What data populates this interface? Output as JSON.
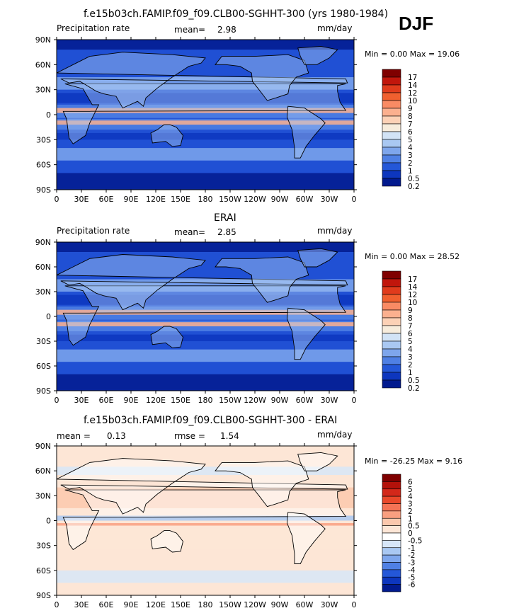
{
  "season": "DJF",
  "x_ticks": [
    "0",
    "30E",
    "60E",
    "90E",
    "120E",
    "150E",
    "180",
    "150W",
    "120W",
    "90W",
    "60W",
    "30W",
    "0"
  ],
  "y_ticks": [
    "90N",
    "60N",
    "30N",
    "0",
    "30S",
    "60S",
    "90S"
  ],
  "panels": [
    {
      "title": "f.e15b03ch.FAMIP.f09_f09.CLB00-SGHHT-300 (yrs 1980-1984)",
      "left_label": "Precipitation rate",
      "stat1_label": "mean=",
      "stat1_value": "2.98",
      "stat2_label": "",
      "stat2_value": "",
      "units": "mm/day",
      "minmax": "Min =   0.00 Max =  19.06",
      "colorbar": [
        "17",
        "14",
        "12",
        "10",
        "9",
        "8",
        "7",
        "6",
        "5",
        "4",
        "3",
        "2",
        "1",
        "0.5",
        "0.2"
      ],
      "colors": [
        "#7f0000",
        "#c1160c",
        "#e03b1c",
        "#f0602f",
        "#f98b64",
        "#fbb08f",
        "#fcd1b6",
        "#f7ecdc",
        "#d2e3f6",
        "#a9c8f2",
        "#7ea6ec",
        "#4f80e4",
        "#2457d8",
        "#0d36be",
        "#021a8e"
      ],
      "background": "#2050d4"
    },
    {
      "title": "ERAI",
      "left_label": "Precipitation rate",
      "stat1_label": "mean=",
      "stat1_value": "2.85",
      "stat2_label": "",
      "stat2_value": "",
      "units": "mm/day",
      "minmax": "Min =   0.00 Max =  28.52",
      "colorbar": [
        "17",
        "14",
        "12",
        "10",
        "9",
        "8",
        "7",
        "6",
        "5",
        "4",
        "3",
        "2",
        "1",
        "0.5",
        "0.2"
      ],
      "colors": [
        "#7f0000",
        "#c1160c",
        "#e03b1c",
        "#f0602f",
        "#f98b64",
        "#fbb08f",
        "#fcd1b6",
        "#f7ecdc",
        "#d2e3f6",
        "#a9c8f2",
        "#7ea6ec",
        "#4f80e4",
        "#2457d8",
        "#0d36be",
        "#021a8e"
      ],
      "background": "#2050d4"
    },
    {
      "title": "f.e15b03ch.FAMIP.f09_f09.CLB00-SGHHT-300 - ERAI",
      "left_label": "mean =",
      "stat1_label": "",
      "stat1_value": "0.13",
      "stat2_label": "rmse =",
      "stat2_value": "1.54",
      "units": "mm/day",
      "minmax": "Min = -26.25 Max =   9.16",
      "colorbar": [
        "6",
        "5",
        "4",
        "3",
        "2",
        "1",
        "0.5",
        "0",
        "-0.5",
        "-1",
        "-2",
        "-3",
        "-4",
        "-5",
        "-6"
      ],
      "colors": [
        "#7f0000",
        "#b3110a",
        "#d3281a",
        "#e9482a",
        "#f47355",
        "#f99f80",
        "#fbc8ad",
        "#fde6d6",
        "#ffffff",
        "#d7e6f8",
        "#a9c8f2",
        "#7ea6ec",
        "#4f80e4",
        "#2457d8",
        "#0d36be",
        "#021a8e"
      ],
      "background": "#fde6d6"
    }
  ]
}
